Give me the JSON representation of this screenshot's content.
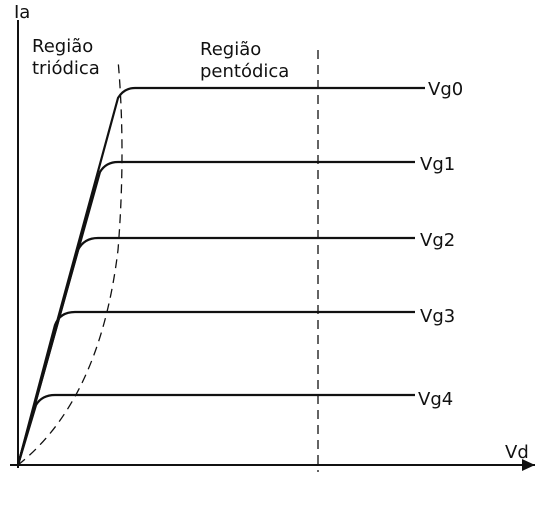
{
  "axes": {
    "y_label": "Ia",
    "x_label": "Vd"
  },
  "regions": [
    {
      "line1": "Região",
      "line2": "triódica"
    },
    {
      "line1": "Região",
      "line2": "pentódica"
    }
  ],
  "curves": [
    {
      "label": "Vg0"
    },
    {
      "label": "Vg1"
    },
    {
      "label": "Vg2"
    },
    {
      "label": "Vg3"
    },
    {
      "label": "Vg4"
    }
  ]
}
